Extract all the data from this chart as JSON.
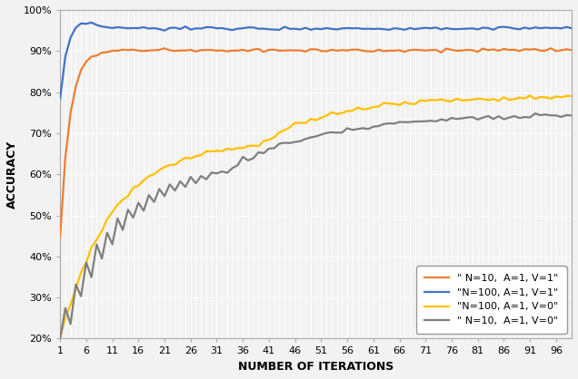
{
  "title": "",
  "xlabel": "NUMBER OF ITERATIONS",
  "ylabel": "ACCURACY",
  "x_ticks": [
    1,
    6,
    11,
    16,
    21,
    26,
    31,
    36,
    41,
    46,
    51,
    56,
    61,
    66,
    71,
    76,
    81,
    86,
    91,
    96
  ],
  "ylim": [
    0.2,
    1.0
  ],
  "yticks": [
    0.2,
    0.3,
    0.4,
    0.5,
    0.6,
    0.7,
    0.8,
    0.9,
    1.0
  ],
  "ytick_labels": [
    "20%",
    "30%",
    "40%",
    "50%",
    "60%",
    "70%",
    "80%",
    "90%",
    "100%"
  ],
  "legend_labels": [
    "\"N=100, A=1, V=1\"",
    "\"N=100, A=1, V=0\"",
    "\" N=10,  A=1, V=1\"",
    "\" N=10,  A=1, V=0\""
  ],
  "line_colors": [
    "#4472C4",
    "#FFC000",
    "#ED7D31",
    "#7F7F7F"
  ],
  "n_points": 99
}
